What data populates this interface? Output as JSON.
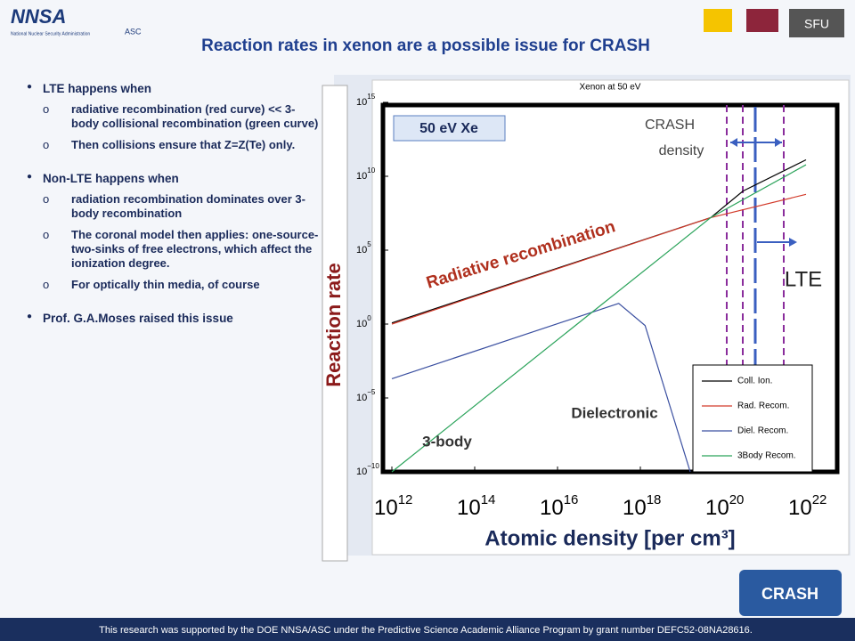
{
  "header": {
    "logos": [
      "NNSA",
      "National Nuclear Security Administration",
      "ASC",
      "SFU"
    ],
    "title": "Reaction rates in xenon are a possible issue for CRASH"
  },
  "bullets": [
    {
      "text": "LTE happens when",
      "subs": [
        "radiative recombination (red curve) << 3-body collisional recombination (green curve)",
        "Then collisions ensure that Z=Z(Te) only."
      ]
    },
    {
      "text": "Non-LTE happens when",
      "subs": [
        "radiation recombination dominates over 3-body recombination",
        "The coronal model then applies: one-source-two-sinks of free electrons, which affect the ionization degree.",
        "For optically thin media, of course"
      ]
    },
    {
      "text": "Prof. G.A.Moses raised this issue",
      "subs": []
    }
  ],
  "chart_data": {
    "type": "line",
    "title": "Xenon at 50 eV",
    "xlabel": "Atomic density [per cm³]",
    "ylabel": "Reaction rate",
    "log_x": true,
    "log_y": true,
    "xlim": [
      1000000000000.0,
      1e+22
    ],
    "ylim": [
      1e-10,
      1000000000000000.0
    ],
    "xticks": [
      {
        "value": 1000000000000.0,
        "label": "10",
        "exponent": "12"
      },
      {
        "value": 100000000000000.0,
        "label": "10",
        "exponent": "14"
      },
      {
        "value": 1e+16,
        "label": "10",
        "exponent": "16"
      },
      {
        "value": 1e+18,
        "label": "10",
        "exponent": "18"
      },
      {
        "value": 1e+20,
        "label": "10",
        "exponent": "20"
      },
      {
        "value": 1e+22,
        "label": "10",
        "exponent": "22"
      }
    ],
    "yticks": [
      {
        "value": 1000000000000000.0,
        "label": "10",
        "exponent": "15"
      },
      {
        "value": 10000000000.0,
        "label": "10",
        "exponent": "10"
      },
      {
        "value": 100000.0,
        "label": "10",
        "exponent": "5"
      },
      {
        "value": 1,
        "label": "10",
        "exponent": "0"
      },
      {
        "value": 1e-05,
        "label": "10",
        "exponent": "−5"
      },
      {
        "value": 1e-10,
        "label": "10",
        "exponent": "−10"
      }
    ],
    "legend": "lower right",
    "series": [
      {
        "name": "Coll. Ion.",
        "color": "#000000",
        "x": [
          1000000000000.0,
          5e+19,
          3e+20,
          1e+22
        ],
        "values": [
          1.2,
          16000000.0,
          1000000000.0,
          130000000000.0
        ]
      },
      {
        "name": "Rad. Recom.",
        "color": "#d23a2a",
        "x": [
          1000000000000.0,
          5e+19,
          1e+22
        ],
        "values": [
          1,
          16000000.0,
          600000000.0
        ]
      },
      {
        "name": "Diel. Recom.",
        "color": "#3a4fa0",
        "x": [
          1000000000000.0,
          3e+17,
          1.3e+18,
          1.6e+19
        ],
        "values": [
          0.0002,
          25,
          0.8,
          1e-10
        ]
      },
      {
        "name": "3Body Recom.",
        "color": "#2aa35a",
        "x": [
          1000000000000.0,
          5e+19,
          1e+22
        ],
        "values": [
          1e-10,
          16000000.0,
          60000000000.0
        ]
      }
    ],
    "annotations": [
      "50 eV Xe",
      "CRASH",
      "density",
      "LTE",
      "Radiative recombination",
      "Dielectronic",
      "3-body"
    ]
  },
  "footer": {
    "logo": "CRASH",
    "text": "This research was supported by the DOE NNSA/ASC under the Predictive Science Academic Alliance Program by grant number DEFC52-08NA28616."
  }
}
